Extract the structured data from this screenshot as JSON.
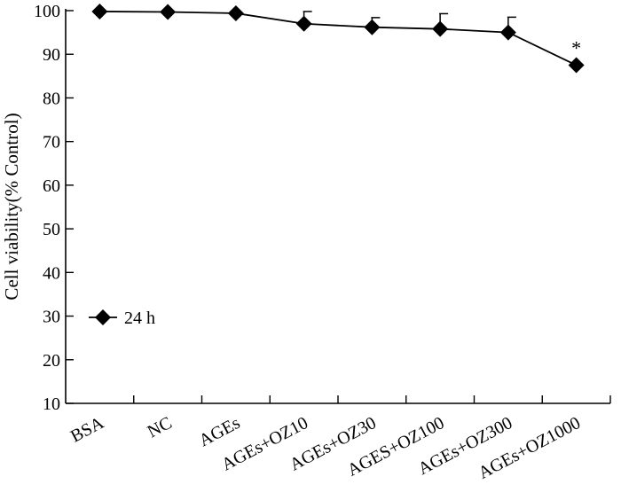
{
  "chart_data": {
    "type": "line",
    "categories": [
      "BSA",
      "NC",
      "AGEs",
      "AGEs+OZ10",
      "AGEs+OZ30",
      "AGES+OZ100",
      "AGEs+OZ300",
      "AGEs+OZ1000"
    ],
    "series": [
      {
        "name": "24 h",
        "values": [
          99.8,
          99.7,
          99.4,
          97.0,
          96.2,
          95.8,
          95.0,
          87.5
        ],
        "error": [
          0,
          0,
          0,
          2.8,
          2.2,
          3.5,
          3.5,
          0
        ]
      }
    ],
    "ylabel": "Cell viability(% Control)",
    "xlabel": "",
    "ylim": [
      10,
      100
    ],
    "yticks": [
      10,
      20,
      30,
      40,
      50,
      60,
      70,
      80,
      90,
      100
    ],
    "annotations": [
      {
        "category": "AGEs+OZ1000",
        "text": "*"
      }
    ],
    "legend_position": "lower-left",
    "grid": false,
    "marker": "diamond",
    "color": "#000000"
  }
}
